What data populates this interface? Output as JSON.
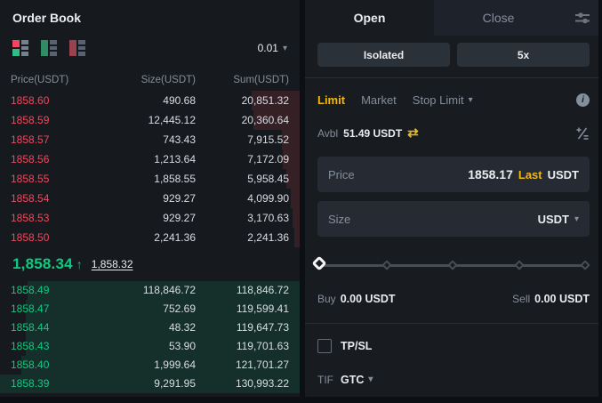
{
  "colors": {
    "accent_yellow": "#F0B90B",
    "ask_red": "#F6465D",
    "bid_green": "#0ECB81"
  },
  "glyphs": {
    "caret_down": "▾",
    "swap": "⇄",
    "arrow_up": "↑",
    "info": "i"
  },
  "order_book": {
    "title": "Order Book",
    "precision": "0.01",
    "columns": {
      "price": "Price(USDT)",
      "size": "Size(USDT)",
      "sum": "Sum(USDT)"
    },
    "asks": [
      {
        "price": "1858.60",
        "size": "490.68",
        "sum": "20,851.32",
        "depth": 15.9
      },
      {
        "price": "1858.59",
        "size": "12,445.12",
        "sum": "20,360.64",
        "depth": 15.5
      },
      {
        "price": "1858.57",
        "size": "743.43",
        "sum": "7,915.52",
        "depth": 6.0
      },
      {
        "price": "1858.56",
        "size": "1,213.64",
        "sum": "7,172.09",
        "depth": 5.5
      },
      {
        "price": "1858.55",
        "size": "1,858.55",
        "sum": "5,958.45",
        "depth": 4.5
      },
      {
        "price": "1858.54",
        "size": "929.27",
        "sum": "4,099.90",
        "depth": 3.1
      },
      {
        "price": "1858.53",
        "size": "929.27",
        "sum": "3,170.63",
        "depth": 2.4
      },
      {
        "price": "1858.50",
        "size": "2,241.36",
        "sum": "2,241.36",
        "depth": 1.7
      }
    ],
    "last_price": {
      "value": "1,858.34",
      "direction": "up",
      "mark_price": "1,858.32"
    },
    "bids": [
      {
        "price": "1858.49",
        "size": "118,846.72",
        "sum": "118,846.72",
        "depth": 90.7
      },
      {
        "price": "1858.47",
        "size": "752.69",
        "sum": "119,599.41",
        "depth": 91.3
      },
      {
        "price": "1858.44",
        "size": "48.32",
        "sum": "119,647.73",
        "depth": 91.3
      },
      {
        "price": "1858.43",
        "size": "53.90",
        "sum": "119,701.63",
        "depth": 91.4
      },
      {
        "price": "1858.40",
        "size": "1,999.64",
        "sum": "121,701.27",
        "depth": 92.9
      },
      {
        "price": "1858.39",
        "size": "9,291.95",
        "sum": "130,993.22",
        "depth": 100
      }
    ]
  },
  "trade_panel": {
    "tabs": {
      "open": "Open",
      "close": "Close"
    },
    "margin_mode_button": "Isolated",
    "leverage_button": "5x",
    "order_types": {
      "limit": "Limit",
      "market": "Market",
      "stop_limit": "Stop Limit"
    },
    "available": {
      "label": "Avbl",
      "value": "51.49 USDT"
    },
    "price_field": {
      "label": "Price",
      "value": "1858.17",
      "last_link": "Last",
      "unit": "USDT"
    },
    "size_field": {
      "label": "Size",
      "unit": "USDT"
    },
    "size_slider": {
      "value_percent": 0,
      "ticks": [
        0,
        25,
        50,
        75,
        100
      ]
    },
    "buy_summary": {
      "label": "Buy",
      "value": "0.00 USDT"
    },
    "sell_summary": {
      "label": "Sell",
      "value": "0.00 USDT"
    },
    "tpsl": {
      "label": "TP/SL",
      "checked": false
    },
    "tif": {
      "label": "TIF",
      "value": "GTC"
    }
  }
}
